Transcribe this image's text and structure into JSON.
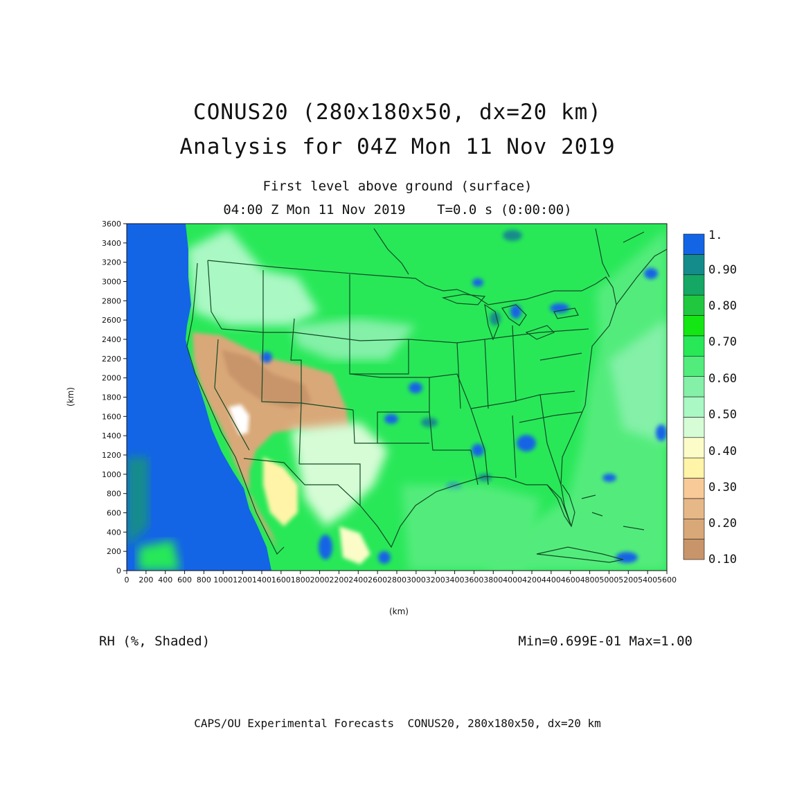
{
  "header": {
    "title_line1": "CONUS20 (280x180x50, dx=20 km)",
    "title_line2": "Analysis for 04Z Mon 11 Nov 2019",
    "subtitle_line1": "First level above ground (surface)",
    "subtitle_line2": "04:00 Z Mon 11 Nov 2019    T=0.0 s (0:00:00)"
  },
  "field_label": "RH (%, Shaded)",
  "minmax_label": "Min=0.699E-01 Max=1.00",
  "footer": "CAPS/OU Experimental Forecasts  CONUS20, 280x180x50, dx=20 km",
  "axes": {
    "xlabel": "(km)",
    "ylabel": "(km)",
    "xlim": [
      0,
      5600
    ],
    "ylim": [
      0,
      3600
    ],
    "xticks": [
      "0",
      "200",
      "400",
      "600",
      "800",
      "1000",
      "1200",
      "1400",
      "1600",
      "1800",
      "2000",
      "2200",
      "2400",
      "2600",
      "2800",
      "3000",
      "3200",
      "3400",
      "3600",
      "3800",
      "4000",
      "4200",
      "4400",
      "4600",
      "4800",
      "5000",
      "5200",
      "5400",
      "5600"
    ],
    "yticks": [
      "0",
      "200",
      "400",
      "600",
      "800",
      "1000",
      "1200",
      "1400",
      "1600",
      "1800",
      "2000",
      "2200",
      "2400",
      "2600",
      "2800",
      "3000",
      "3200",
      "3400",
      "3600"
    ]
  },
  "colorbar": {
    "labels": [
      "1.",
      "0.90",
      "0.80",
      "0.70",
      "0.60",
      "0.50",
      "0.40",
      "0.30",
      "0.20",
      "0.10"
    ],
    "colors": [
      "#c8946a",
      "#d9a878",
      "#e6b888",
      "#f8ca98",
      "#fff4a8",
      "#fcfcc8",
      "#d6fcd6",
      "#aaf8c4",
      "#84f0a8",
      "#52ec7c",
      "#28e858",
      "#14e614",
      "#20c840",
      "#14a864",
      "#148c8c",
      "#1464e6"
    ]
  },
  "colors": {
    "ocean": "#1464e6",
    "land_base": "#28e858",
    "boundary": "#124a24"
  }
}
